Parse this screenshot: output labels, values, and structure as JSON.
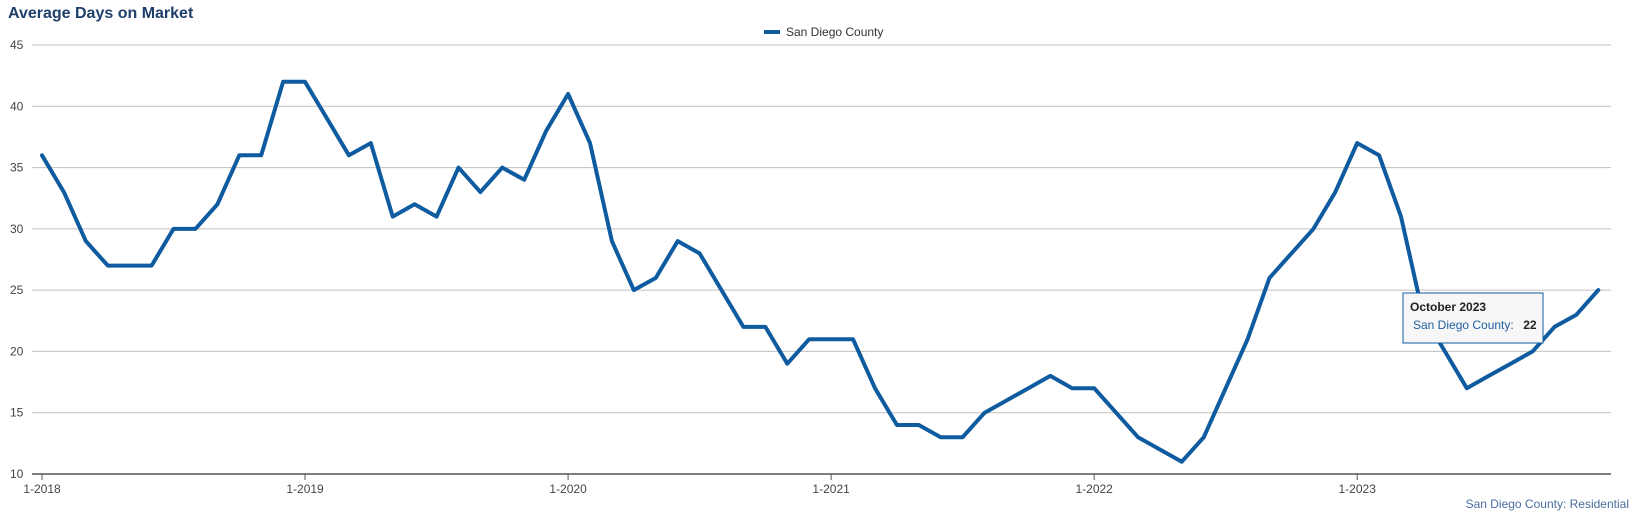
{
  "chart_data": {
    "type": "line",
    "title": "Average Days on Market",
    "xlabel": "",
    "ylabel": "",
    "ylim": [
      10,
      45
    ],
    "yticks": [
      10,
      15,
      20,
      25,
      30,
      35,
      40,
      45
    ],
    "grid": true,
    "legend_position": "top-center",
    "x_tick_labels": [
      "1-2018",
      "1-2019",
      "1-2020",
      "1-2021",
      "1-2022",
      "1-2023"
    ],
    "x_start": "1-2018",
    "series": [
      {
        "name": "San Diego County",
        "color": "#0f5ba0",
        "values": [
          36,
          33,
          29,
          27,
          27,
          27,
          30,
          30,
          32,
          36,
          36,
          42,
          42,
          39,
          36,
          37,
          31,
          32,
          31,
          35,
          33,
          35,
          34,
          38,
          41,
          37,
          29,
          25,
          26,
          29,
          28,
          25,
          22,
          22,
          19,
          21,
          21,
          21,
          17,
          14,
          14,
          13,
          13,
          15,
          16,
          17,
          18,
          17,
          17,
          15,
          13,
          12,
          11,
          13,
          17,
          21,
          26,
          28,
          30,
          33,
          37,
          36,
          31,
          23,
          20,
          17,
          18,
          19,
          20,
          22,
          23,
          25
        ]
      }
    ],
    "tooltip": {
      "title": "October 2023",
      "series_label": "San Diego County:",
      "value": "22"
    },
    "source_label": "San Diego County: Residential"
  }
}
